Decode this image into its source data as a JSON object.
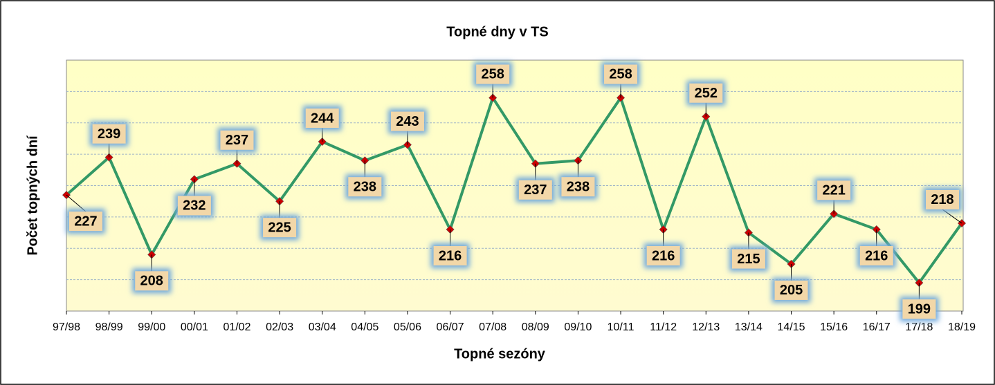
{
  "chart_data": {
    "type": "line",
    "title": "Topné dny v TS",
    "x_label": "Topné sezóny",
    "y_label": "Počet topných dní",
    "categories": [
      "97/98",
      "98/99",
      "99/00",
      "00/01",
      "01/02",
      "02/03",
      "03/04",
      "04/05",
      "05/06",
      "06/07",
      "07/08",
      "08/09",
      "09/10",
      "10/11",
      "11/12",
      "12/13",
      "13/14",
      "14/15",
      "15/16",
      "16/17",
      "17/18",
      "18/19"
    ],
    "series": [
      {
        "name": "Počet topných dní",
        "color": "#339966",
        "marker_color": "#cc0000",
        "values": [
          227,
          239,
          208,
          232,
          237,
          225,
          244,
          238,
          243,
          216,
          258,
          237,
          238,
          258,
          216,
          252,
          215,
          205,
          221,
          216,
          199,
          218
        ]
      }
    ],
    "ylim": [
      190,
      270
    ],
    "yticks": [
      200,
      210,
      220,
      230,
      240,
      250,
      260
    ],
    "grid": true
  }
}
